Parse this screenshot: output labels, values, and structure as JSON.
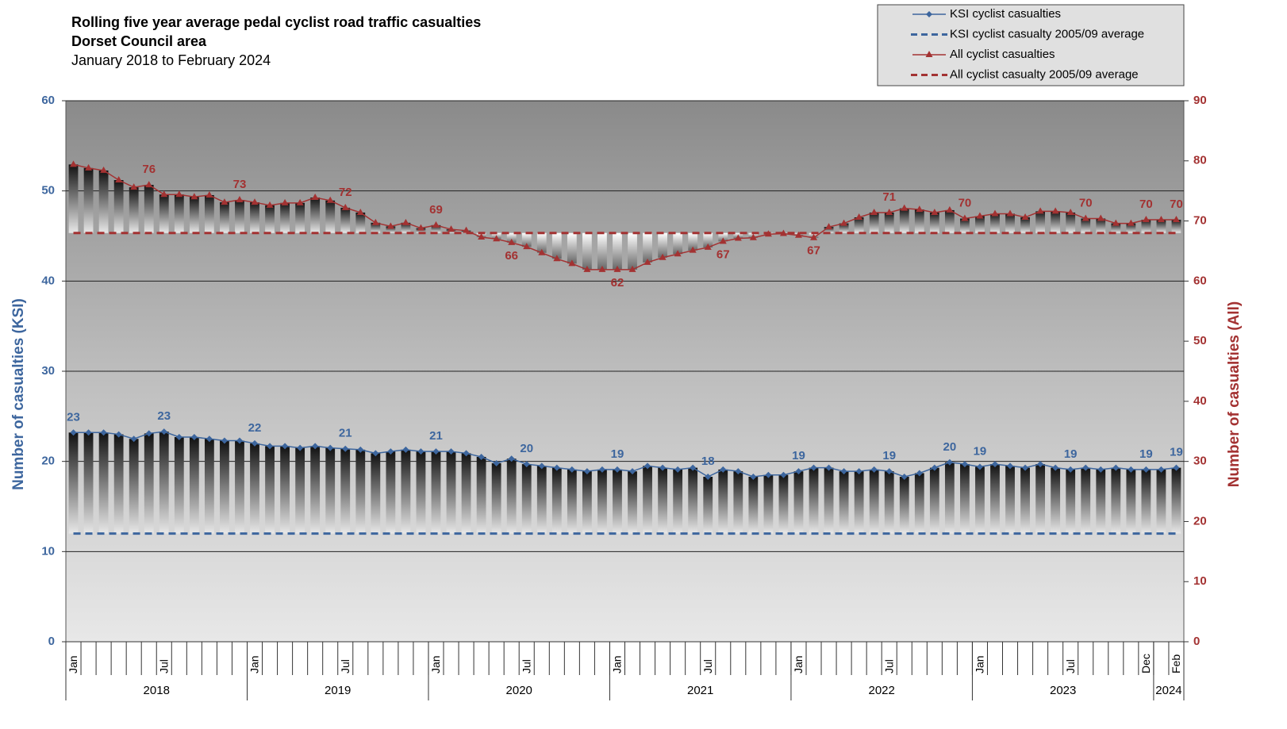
{
  "chart_data": {
    "type": "combo",
    "title": "Rolling five year average pedal cyclist road traffic casualties",
    "subtitle": "Dorset Council area",
    "date_range": "January 2018 to February 2024",
    "y_label": "Number of casualties (KSI)",
    "y2_label": "Number of casualties (All)",
    "ylim": [
      0,
      60
    ],
    "yticks": [
      0,
      10,
      20,
      30,
      40,
      50,
      60
    ],
    "y2lim": [
      0,
      90
    ],
    "y2ticks": [
      0,
      10,
      20,
      30,
      40,
      50,
      60,
      70,
      80,
      90
    ],
    "grid": true,
    "categories": [
      "Jan",
      null,
      null,
      null,
      null,
      null,
      "Jul",
      null,
      null,
      null,
      null,
      null,
      "Jan",
      null,
      null,
      null,
      null,
      null,
      "Jul",
      null,
      null,
      null,
      null,
      null,
      "Jan",
      null,
      null,
      null,
      null,
      null,
      "Jul",
      null,
      null,
      null,
      null,
      null,
      "Jan",
      null,
      null,
      null,
      null,
      null,
      "Jul",
      null,
      null,
      null,
      null,
      null,
      "Jan",
      null,
      null,
      null,
      null,
      null,
      "Jul",
      null,
      null,
      null,
      null,
      null,
      "Jan",
      null,
      null,
      null,
      null,
      null,
      "Jul",
      null,
      null,
      null,
      null,
      "Dec",
      null,
      "Feb"
    ],
    "years": [
      "2018",
      "2019",
      "2020",
      "2021",
      "2022",
      "2023",
      "2024"
    ],
    "series": [
      {
        "name": "KSI cyclist casualties",
        "color": "#3d669e",
        "marker": "diamond",
        "axis": "y",
        "values": [
          23.2,
          23.2,
          23.2,
          23.0,
          22.5,
          23.1,
          23.3,
          22.7,
          22.7,
          22.5,
          22.3,
          22.3,
          22.0,
          21.7,
          21.7,
          21.5,
          21.7,
          21.5,
          21.4,
          21.3,
          20.9,
          21.1,
          21.3,
          21.1,
          21.1,
          21.1,
          20.9,
          20.5,
          19.8,
          20.3,
          19.7,
          19.5,
          19.3,
          19.1,
          18.9,
          19.1,
          19.1,
          18.9,
          19.5,
          19.3,
          19.1,
          19.3,
          18.3,
          19.1,
          18.9,
          18.3,
          18.5,
          18.5,
          18.9,
          19.3,
          19.3,
          18.9,
          18.9,
          19.1,
          18.9,
          18.3,
          18.7,
          19.3,
          19.9,
          19.7,
          19.4,
          19.7,
          19.5,
          19.3,
          19.7,
          19.3,
          19.1,
          19.3,
          19.1,
          19.3,
          19.1,
          19.1,
          19.1,
          19.3
        ],
        "value_labels": [
          "23",
          null,
          null,
          null,
          null,
          null,
          "23",
          null,
          null,
          null,
          null,
          null,
          "22",
          null,
          null,
          null,
          null,
          null,
          "21",
          null,
          null,
          null,
          null,
          null,
          "21",
          null,
          null,
          null,
          null,
          null,
          "20",
          null,
          null,
          null,
          null,
          null,
          "19",
          null,
          null,
          null,
          null,
          null,
          "18",
          null,
          null,
          null,
          null,
          null,
          "19",
          null,
          null,
          null,
          null,
          null,
          "19",
          null,
          null,
          null,
          "20",
          null,
          "19",
          null,
          null,
          null,
          null,
          null,
          "19",
          null,
          null,
          null,
          null,
          "19",
          null,
          "19"
        ]
      },
      {
        "name": "All cyclist casualties",
        "color": "#a33232",
        "marker": "triangle",
        "axis": "y2",
        "values": [
          79.4,
          78.8,
          78.4,
          76.8,
          75.6,
          76.0,
          74.4,
          74.4,
          74.0,
          74.3,
          73.1,
          73.5,
          73.1,
          72.6,
          73.0,
          73.0,
          73.9,
          73.4,
          72.2,
          71.4,
          69.7,
          69.1,
          69.7,
          68.8,
          69.3,
          68.6,
          68.4,
          67.3,
          67.0,
          66.4,
          65.7,
          64.7,
          63.7,
          62.9,
          61.9,
          61.9,
          61.9,
          61.9,
          63.1,
          63.9,
          64.5,
          65.1,
          65.6,
          66.6,
          67.1,
          67.2,
          67.8,
          67.9,
          67.6,
          67.2,
          69.0,
          69.6,
          70.6,
          71.4,
          71.4,
          72.1,
          71.9,
          71.4,
          71.8,
          70.4,
          70.8,
          71.2,
          71.2,
          70.6,
          71.6,
          71.6,
          71.4,
          70.4,
          70.4,
          69.6,
          69.6,
          70.2,
          70.2,
          70.2
        ],
        "value_labels": [
          null,
          null,
          null,
          null,
          null,
          "76",
          null,
          null,
          null,
          null,
          null,
          "73",
          null,
          null,
          null,
          null,
          null,
          null,
          "72",
          null,
          null,
          null,
          null,
          null,
          "69",
          null,
          null,
          null,
          null,
          "66",
          null,
          null,
          null,
          null,
          null,
          null,
          "62",
          null,
          null,
          null,
          null,
          null,
          null,
          "67",
          null,
          null,
          null,
          null,
          null,
          "67",
          null,
          null,
          null,
          null,
          "71",
          null,
          null,
          null,
          null,
          "70",
          null,
          null,
          null,
          null,
          null,
          null,
          null,
          "70",
          null,
          null,
          null,
          "70",
          null,
          "70"
        ]
      }
    ],
    "reference_lines": [
      {
        "name": "KSI cyclist casualty 2005/09 average",
        "color": "#3d669e",
        "value": 12,
        "axis": "y"
      },
      {
        "name": "All cyclist casualty 2005/09 average",
        "color": "#a33232",
        "value": 68,
        "axis": "y2"
      }
    ]
  }
}
